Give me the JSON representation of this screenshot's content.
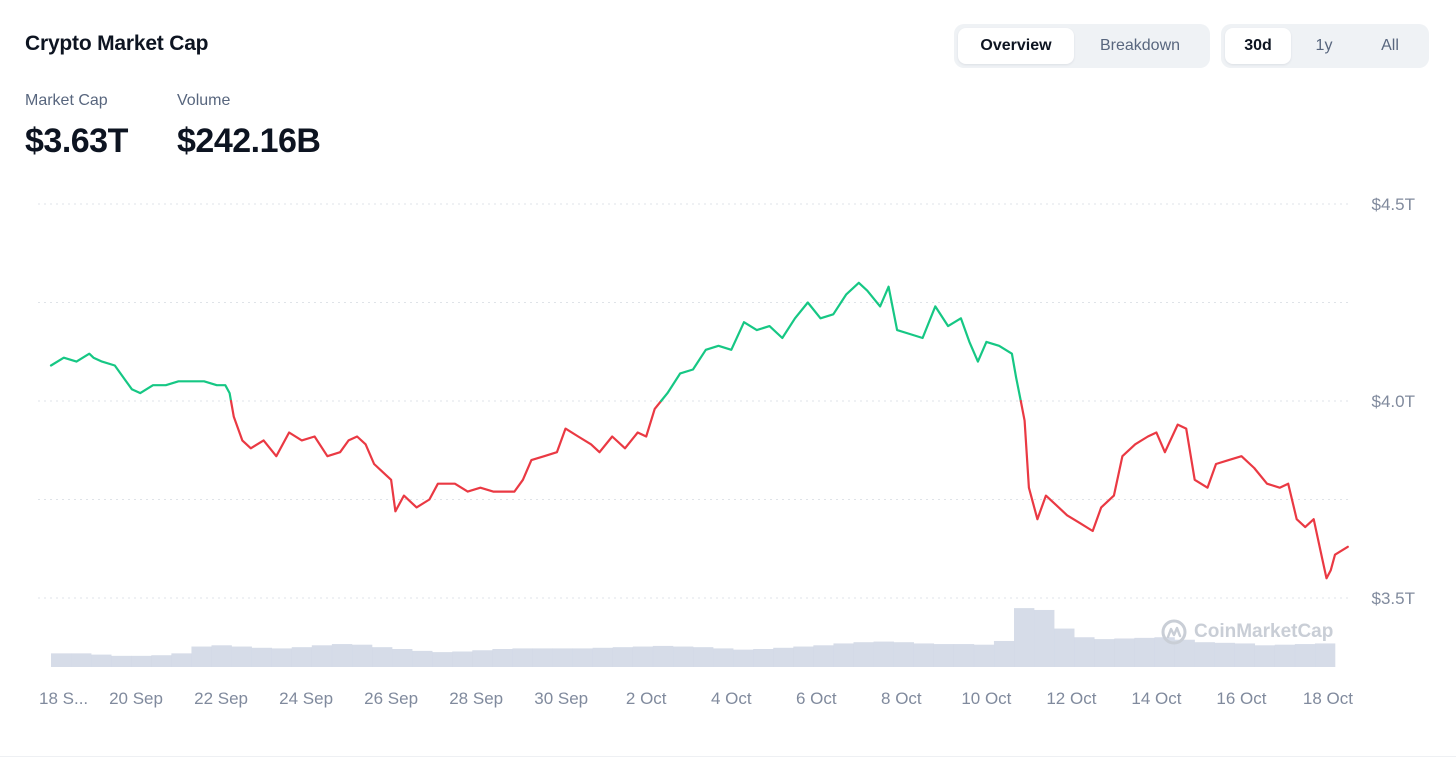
{
  "header": {
    "title": "Crypto Market Cap",
    "view_tabs": [
      {
        "label": "Overview",
        "active": true
      },
      {
        "label": "Breakdown",
        "active": false
      }
    ],
    "range_tabs": [
      {
        "label": "30d",
        "active": true
      },
      {
        "label": "1y",
        "active": false
      },
      {
        "label": "All",
        "active": false
      }
    ]
  },
  "stats": {
    "market_cap": {
      "label": "Market Cap",
      "value": "$3.63T"
    },
    "volume": {
      "label": "Volume",
      "value": "$242.16B"
    }
  },
  "watermark": {
    "text": "CoinMarketCap",
    "icon": "coinmarketcap-logo-icon"
  },
  "colors": {
    "up": "#16c784",
    "down": "#ea3943",
    "volume": "#cfd6e4",
    "grid": "#dfe3e8",
    "axis_text": "#808a9d"
  },
  "chart_data": {
    "type": "line",
    "title": "",
    "xlabel": "",
    "ylabel": "",
    "baseline": 4.0,
    "ylim": [
      3.5,
      4.5
    ],
    "grid": true,
    "y_ticks": [
      {
        "value": 4.5,
        "label": "$4.5T"
      },
      {
        "value": 4.0,
        "label": "$4.0T"
      },
      {
        "value": 3.5,
        "label": "$3.5T"
      }
    ],
    "x_ticks": [
      "18 S...",
      "20 Sep",
      "22 Sep",
      "24 Sep",
      "26 Sep",
      "28 Sep",
      "30 Sep",
      "2 Oct",
      "4 Oct",
      "6 Oct",
      "8 Oct",
      "10 Oct",
      "12 Oct",
      "14 Oct",
      "16 Oct",
      "18 Oct"
    ],
    "x_tick_days": [
      0,
      2,
      4,
      6,
      8,
      10,
      12,
      14,
      16,
      18,
      20,
      22,
      24,
      26,
      28,
      30
    ],
    "x_range_days": [
      0,
      30.2
    ],
    "series": [
      {
        "unit": "T",
        "points": [
          [
            0.0,
            4.09
          ],
          [
            0.3,
            4.11
          ],
          [
            0.6,
            4.1
          ],
          [
            0.9,
            4.12
          ],
          [
            1.0,
            4.11
          ],
          [
            1.2,
            4.1
          ],
          [
            1.5,
            4.09
          ],
          [
            1.7,
            4.06
          ],
          [
            1.9,
            4.03
          ],
          [
            2.1,
            4.02
          ],
          [
            2.4,
            4.04
          ],
          [
            2.7,
            4.04
          ],
          [
            3.0,
            4.05
          ],
          [
            3.3,
            4.05
          ],
          [
            3.6,
            4.05
          ],
          [
            3.9,
            4.04
          ],
          [
            4.1,
            4.04
          ],
          [
            4.2,
            4.02
          ],
          [
            4.3,
            3.96
          ],
          [
            4.5,
            3.9
          ],
          [
            4.7,
            3.88
          ],
          [
            5.0,
            3.9
          ],
          [
            5.3,
            3.86
          ],
          [
            5.6,
            3.92
          ],
          [
            5.9,
            3.9
          ],
          [
            6.2,
            3.91
          ],
          [
            6.5,
            3.86
          ],
          [
            6.8,
            3.87
          ],
          [
            7.0,
            3.9
          ],
          [
            7.2,
            3.91
          ],
          [
            7.4,
            3.89
          ],
          [
            7.6,
            3.84
          ],
          [
            7.8,
            3.82
          ],
          [
            8.0,
            3.8
          ],
          [
            8.1,
            3.72
          ],
          [
            8.3,
            3.76
          ],
          [
            8.6,
            3.73
          ],
          [
            8.9,
            3.75
          ],
          [
            9.1,
            3.79
          ],
          [
            9.5,
            3.79
          ],
          [
            9.8,
            3.77
          ],
          [
            10.1,
            3.78
          ],
          [
            10.4,
            3.77
          ],
          [
            10.7,
            3.77
          ],
          [
            10.9,
            3.77
          ],
          [
            11.1,
            3.8
          ],
          [
            11.3,
            3.85
          ],
          [
            11.6,
            3.86
          ],
          [
            11.9,
            3.87
          ],
          [
            12.1,
            3.93
          ],
          [
            12.4,
            3.91
          ],
          [
            12.7,
            3.89
          ],
          [
            12.9,
            3.87
          ],
          [
            13.2,
            3.91
          ],
          [
            13.5,
            3.88
          ],
          [
            13.8,
            3.92
          ],
          [
            14.0,
            3.91
          ],
          [
            14.2,
            3.98
          ],
          [
            14.5,
            4.02
          ],
          [
            14.8,
            4.07
          ],
          [
            15.1,
            4.08
          ],
          [
            15.4,
            4.13
          ],
          [
            15.7,
            4.14
          ],
          [
            16.0,
            4.13
          ],
          [
            16.3,
            4.2
          ],
          [
            16.6,
            4.18
          ],
          [
            16.9,
            4.19
          ],
          [
            17.2,
            4.16
          ],
          [
            17.5,
            4.21
          ],
          [
            17.8,
            4.25
          ],
          [
            18.1,
            4.21
          ],
          [
            18.4,
            4.22
          ],
          [
            18.7,
            4.27
          ],
          [
            19.0,
            4.3
          ],
          [
            19.2,
            4.28
          ],
          [
            19.5,
            4.24
          ],
          [
            19.7,
            4.29
          ],
          [
            19.9,
            4.18
          ],
          [
            20.2,
            4.17
          ],
          [
            20.5,
            4.16
          ],
          [
            20.8,
            4.24
          ],
          [
            21.1,
            4.19
          ],
          [
            21.4,
            4.21
          ],
          [
            21.6,
            4.15
          ],
          [
            21.8,
            4.1
          ],
          [
            22.0,
            4.15
          ],
          [
            22.3,
            4.14
          ],
          [
            22.6,
            4.12
          ],
          [
            22.7,
            4.06
          ],
          [
            22.9,
            3.95
          ],
          [
            23.0,
            3.78
          ],
          [
            23.2,
            3.7
          ],
          [
            23.4,
            3.76
          ],
          [
            23.6,
            3.74
          ],
          [
            23.9,
            3.71
          ],
          [
            24.2,
            3.69
          ],
          [
            24.5,
            3.67
          ],
          [
            24.7,
            3.73
          ],
          [
            25.0,
            3.76
          ],
          [
            25.2,
            3.86
          ],
          [
            25.5,
            3.89
          ],
          [
            25.8,
            3.91
          ],
          [
            26.0,
            3.92
          ],
          [
            26.2,
            3.87
          ],
          [
            26.5,
            3.94
          ],
          [
            26.7,
            3.93
          ],
          [
            26.9,
            3.8
          ],
          [
            27.2,
            3.78
          ],
          [
            27.4,
            3.84
          ],
          [
            27.7,
            3.85
          ],
          [
            28.0,
            3.86
          ],
          [
            28.3,
            3.83
          ],
          [
            28.6,
            3.79
          ],
          [
            28.9,
            3.78
          ],
          [
            29.1,
            3.79
          ],
          [
            29.3,
            3.7
          ],
          [
            29.5,
            3.68
          ],
          [
            29.7,
            3.7
          ],
          [
            29.9,
            3.6
          ],
          [
            30.0,
            3.55
          ],
          [
            30.1,
            3.57
          ],
          [
            30.2,
            3.61
          ],
          [
            30.5,
            3.63
          ]
        ]
      }
    ],
    "volume": {
      "values": [
        0.22,
        0.22,
        0.2,
        0.18,
        0.18,
        0.19,
        0.22,
        0.33,
        0.35,
        0.33,
        0.31,
        0.3,
        0.32,
        0.35,
        0.37,
        0.36,
        0.32,
        0.29,
        0.26,
        0.24,
        0.25,
        0.27,
        0.29,
        0.3,
        0.3,
        0.3,
        0.3,
        0.31,
        0.32,
        0.33,
        0.34,
        0.33,
        0.32,
        0.3,
        0.28,
        0.29,
        0.31,
        0.33,
        0.35,
        0.38,
        0.4,
        0.41,
        0.4,
        0.38,
        0.37,
        0.37,
        0.36,
        0.42,
        0.95,
        0.92,
        0.62,
        0.48,
        0.45,
        0.46,
        0.47,
        0.48,
        0.44,
        0.4,
        0.39,
        0.38,
        0.35,
        0.36,
        0.37,
        0.38
      ]
    }
  }
}
